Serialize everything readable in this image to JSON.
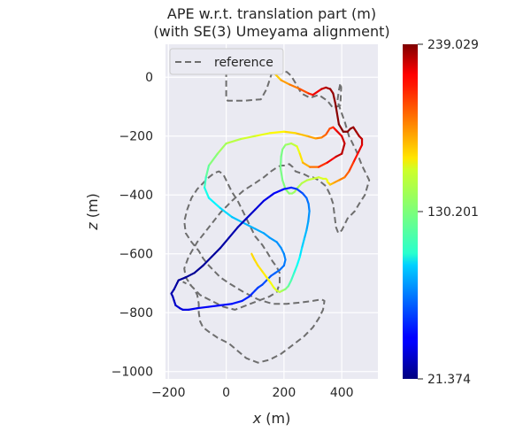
{
  "chart_data": {
    "type": "line",
    "title": "APE w.r.t. translation part (m)",
    "subtitle": "(with SE(3) Umeyama alignment)",
    "xlabel": "x (m)",
    "ylabel": "z (m)",
    "xlim": [
      -210,
      525
    ],
    "ylim": [
      -1025,
      112
    ],
    "xticks": [
      -200,
      0,
      200,
      400
    ],
    "xtick_labels": [
      "−200",
      "0",
      "200",
      "400"
    ],
    "yticks": [
      0,
      -200,
      -400,
      -600,
      -800,
      -1000
    ],
    "ytick_labels": [
      "0",
      "−200",
      "−400",
      "−600",
      "−800",
      "−1000"
    ],
    "grid": true,
    "legend": {
      "placement": "top-left",
      "entries": [
        "reference"
      ]
    },
    "colorbar": {
      "colormap": "jet",
      "min": 21.374,
      "max": 239.029,
      "tick_values": [
        239.029,
        130.201,
        21.374
      ],
      "tick_labels": [
        "239.029",
        "130.201",
        "21.374"
      ]
    },
    "colors": {
      "plot_bg": "#eaeaf2",
      "grid": "#ffffff",
      "reference": "#6e6e6e"
    },
    "series": [
      {
        "name": "reference",
        "style": "dashed",
        "x": [
          0,
          0,
          5,
          20,
          60,
          120,
          140,
          160,
          190,
          210,
          225,
          240,
          260,
          290,
          320,
          350,
          370,
          395,
          398,
          395,
          390,
          385,
          395,
          410,
          425,
          450,
          470,
          495,
          480,
          460,
          445,
          420,
          400,
          388,
          380,
          375,
          370,
          360,
          345,
          320,
          300,
          290,
          270,
          240,
          230,
          218,
          205,
          195,
          188,
          180,
          170,
          155,
          130,
          100,
          60,
          20,
          -20,
          -60,
          -100,
          -130,
          -145,
          -140,
          -120,
          -90,
          -50,
          -10,
          30,
          70,
          110,
          150,
          175,
          185,
          185,
          175,
          160,
          145,
          125,
          100,
          80,
          60,
          40,
          20,
          5,
          -10,
          -25,
          -40,
          -60,
          -80,
          -100,
          -120,
          -135,
          -145,
          -140,
          -120,
          -95,
          -80,
          -60,
          -40,
          -20,
          10,
          60,
          110,
          160,
          210,
          260,
          300,
          330,
          340,
          335,
          320,
          300,
          270,
          230,
          190,
          150,
          110,
          70,
          40,
          10,
          -30,
          -60,
          -80,
          -90,
          -95,
          -95,
          -100,
          -110,
          -125,
          -140,
          -150
        ],
        "y": [
          55,
          -70,
          -80,
          -80,
          -80,
          -75,
          -40,
          20,
          20,
          18,
          5,
          -20,
          -55,
          -70,
          -60,
          -80,
          -105,
          -95,
          -35,
          -20,
          -45,
          -80,
          -110,
          -150,
          -200,
          -250,
          -300,
          -350,
          -400,
          -430,
          -455,
          -480,
          -520,
          -530,
          -510,
          -470,
          -430,
          -400,
          -370,
          -350,
          -340,
          -340,
          -330,
          -320,
          -305,
          -295,
          -300,
          -300,
          -300,
          -305,
          -310,
          -320,
          -340,
          -360,
          -385,
          -420,
          -460,
          -510,
          -560,
          -610,
          -650,
          -680,
          -710,
          -740,
          -760,
          -780,
          -790,
          -775,
          -760,
          -745,
          -730,
          -700,
          -665,
          -645,
          -625,
          -600,
          -570,
          -540,
          -500,
          -460,
          -420,
          -390,
          -360,
          -330,
          -320,
          -325,
          -340,
          -360,
          -380,
          -410,
          -450,
          -490,
          -530,
          -560,
          -590,
          -615,
          -640,
          -660,
          -680,
          -700,
          -730,
          -755,
          -770,
          -770,
          -765,
          -760,
          -755,
          -760,
          -790,
          -820,
          -850,
          -880,
          -910,
          -940,
          -960,
          -970,
          -955,
          -930,
          -905,
          -885,
          -865,
          -850,
          -830,
          -800,
          -770,
          -740,
          -720,
          -705,
          -700,
          -695
        ]
      }
    ],
    "estimate": {
      "name": "",
      "style": "colored by APE value",
      "x": [
        145,
        160,
        190,
        220,
        255,
        285,
        300,
        330,
        345,
        360,
        370,
        378,
        390,
        405,
        420,
        430,
        440,
        450,
        460,
        470,
        470,
        455,
        440,
        425,
        410,
        390,
        370,
        360,
        355,
        350,
        350,
        345,
        335,
        320,
        300,
        280,
        262,
        248,
        236,
        228,
        218,
        205,
        195,
        188,
        190,
        195,
        205,
        225,
        245,
        255,
        265,
        290,
        320,
        350,
        380,
        400,
        410,
        400,
        380,
        370,
        358,
        345,
        330,
        310,
        280,
        240,
        200,
        150,
        100,
        50,
        0,
        -30,
        -60,
        -70,
        -75,
        -60,
        -20,
        20,
        60,
        100,
        130,
        150,
        175,
        190,
        200,
        205,
        200,
        185,
        170,
        155,
        140,
        125,
        110,
        100,
        90,
        80,
        55,
        20,
        -20,
        -60,
        -100,
        -130,
        -150,
        -160,
        -175,
        -180,
        -185,
        -190,
        -180,
        -170,
        -165,
        -140,
        -110,
        -80,
        -50,
        -20,
        10,
        40,
        70,
        100,
        130,
        165,
        200,
        225,
        245,
        265,
        278,
        285,
        288,
        284,
        278,
        270,
        262,
        255,
        245,
        235,
        225,
        215,
        205,
        195,
        185,
        175,
        165,
        155,
        140,
        125,
        110,
        98,
        88
      ],
      "y": [
        40,
        20,
        -10,
        -25,
        -40,
        -55,
        -60,
        -40,
        -35,
        -40,
        -55,
        -90,
        -160,
        -185,
        -185,
        -175,
        -170,
        -185,
        -200,
        -210,
        -230,
        -260,
        -290,
        -320,
        -340,
        -350,
        -360,
        -365,
        -360,
        -355,
        -350,
        -345,
        -345,
        -340,
        -345,
        -350,
        -360,
        -375,
        -390,
        -395,
        -395,
        -380,
        -350,
        -310,
        -270,
        -245,
        -230,
        -225,
        -235,
        -260,
        -290,
        -305,
        -305,
        -290,
        -270,
        -260,
        -225,
        -200,
        -180,
        -170,
        -175,
        -195,
        -205,
        -208,
        -200,
        -190,
        -185,
        -190,
        -200,
        -210,
        -225,
        -260,
        -300,
        -340,
        -375,
        -410,
        -445,
        -475,
        -495,
        -515,
        -530,
        -545,
        -560,
        -580,
        -600,
        -620,
        -640,
        -655,
        -665,
        -675,
        -690,
        -705,
        -715,
        -725,
        -735,
        -745,
        -760,
        -770,
        -775,
        -780,
        -785,
        -790,
        -790,
        -785,
        -775,
        -760,
        -745,
        -735,
        -720,
        -700,
        -690,
        -680,
        -665,
        -640,
        -610,
        -580,
        -545,
        -510,
        -480,
        -450,
        -420,
        -395,
        -380,
        -375,
        -380,
        -395,
        -410,
        -430,
        -455,
        -490,
        -520,
        -550,
        -580,
        -610,
        -640,
        -665,
        -690,
        -710,
        -720,
        -725,
        -730,
        -725,
        -715,
        -700,
        -680,
        -660,
        -640,
        -620,
        -600
      ],
      "ape": [
        150,
        162,
        175,
        182,
        190,
        200,
        210,
        220,
        228,
        232,
        235,
        236,
        238,
        239,
        238,
        236,
        234,
        232,
        230,
        225,
        220,
        212,
        204,
        195,
        188,
        182,
        176,
        170,
        165,
        160,
        155,
        152,
        150,
        148,
        146,
        144,
        142,
        140,
        138,
        136,
        134,
        132,
        130,
        128,
        128,
        130,
        134,
        140,
        148,
        158,
        168,
        180,
        195,
        208,
        220,
        228,
        225,
        220,
        215,
        205,
        198,
        192,
        186,
        180,
        174,
        168,
        162,
        156,
        150,
        145,
        140,
        135,
        128,
        120,
        112,
        104,
        98,
        92,
        88,
        86,
        84,
        82,
        80,
        79,
        78,
        76,
        74,
        72,
        70,
        68,
        66,
        64,
        62,
        60,
        58,
        56,
        54,
        52,
        50,
        48,
        46,
        44,
        42,
        40,
        38,
        36,
        34,
        32,
        30,
        28,
        27,
        26,
        26,
        26,
        27,
        28,
        30,
        32,
        35,
        38,
        42,
        46,
        50,
        55,
        60,
        65,
        70,
        74,
        78,
        82,
        86,
        90,
        95,
        100,
        106,
        112,
        118,
        124,
        130,
        136,
        142,
        148,
        152,
        156,
        160,
        162,
        164,
        165,
        166
      ]
    }
  }
}
